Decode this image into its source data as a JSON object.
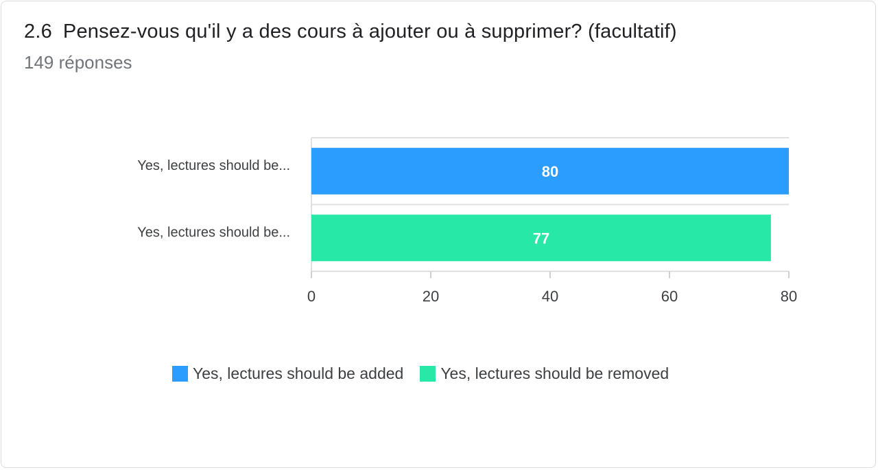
{
  "header": {
    "number": "2.6",
    "question": "Pensez-vous qu'il y a des cours à ajouter ou à supprimer? (facultatif)",
    "responses": "149 réponses"
  },
  "chart_data": {
    "type": "bar",
    "orientation": "horizontal",
    "categories": [
      "Yes, lectures should be...",
      "Yes, lectures should be..."
    ],
    "values": [
      80,
      77
    ],
    "data_labels": [
      "80",
      "77"
    ],
    "bar_colors": [
      "#2a9dff",
      "#27e8a6"
    ],
    "xlim": [
      0,
      80
    ],
    "xticks": [
      "0",
      "20",
      "40",
      "60",
      "80"
    ],
    "grid": true,
    "legend_position": "bottom",
    "legend": [
      {
        "name": "Yes, lectures should be added",
        "color": "#2a9dff"
      },
      {
        "name": "Yes, lectures should be removed",
        "color": "#27e8a6"
      }
    ]
  }
}
